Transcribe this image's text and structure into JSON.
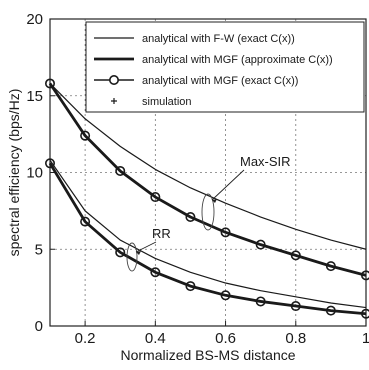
{
  "chart_data": {
    "type": "line",
    "xlabel": "Normalized BS-MS distance",
    "ylabel": "spectral efficiency (bps/Hz)",
    "xlim": [
      0.1,
      1
    ],
    "ylim": [
      0,
      20
    ],
    "xticks": [
      "0.2",
      "0.4",
      "0.6",
      "0.8",
      "1"
    ],
    "yticks": [
      "0",
      "5",
      "10",
      "15",
      "20"
    ],
    "grid": true,
    "legend_position": "top-right",
    "annotations": [
      "Max-SIR",
      "RR"
    ],
    "x": [
      0.1,
      0.2,
      0.3,
      0.4,
      0.5,
      0.6,
      0.7,
      0.8,
      0.9,
      1.0
    ],
    "series": [
      {
        "name": "analytical with F-W (exact C(x))",
        "group": "Max-SIR",
        "values": [
          15.8,
          13.5,
          11.7,
          10.2,
          9.0,
          8.0,
          7.1,
          6.3,
          5.6,
          5.0
        ]
      },
      {
        "name": "analytical with MGF (approximate C(x))",
        "group": "Max-SIR",
        "values": [
          15.8,
          12.4,
          10.1,
          8.4,
          7.1,
          6.1,
          5.3,
          4.6,
          3.9,
          3.3
        ]
      },
      {
        "name": "analytical with MGF (exact C(x))",
        "group": "Max-SIR",
        "values": [
          15.8,
          12.4,
          10.1,
          8.4,
          7.1,
          6.1,
          5.3,
          4.6,
          3.9,
          3.3
        ]
      },
      {
        "name": "analytical with F-W (exact C(x))",
        "group": "RR",
        "values": [
          10.8,
          7.5,
          5.6,
          4.4,
          3.5,
          2.8,
          2.3,
          1.9,
          1.5,
          1.2
        ]
      },
      {
        "name": "analytical with MGF (approximate C(x))",
        "group": "RR",
        "values": [
          10.6,
          6.8,
          4.8,
          3.5,
          2.6,
          2.0,
          1.6,
          1.3,
          1.0,
          0.8
        ]
      },
      {
        "name": "analytical with MGF (exact C(x))",
        "group": "RR",
        "values": [
          10.6,
          6.8,
          4.8,
          3.5,
          2.6,
          2.0,
          1.6,
          1.3,
          1.0,
          0.8
        ]
      }
    ],
    "legend": [
      {
        "label": "analytical with F-W (exact C(x))",
        "style": "thin-line"
      },
      {
        "label": "analytical with MGF (approximate C(x))",
        "style": "thick-line"
      },
      {
        "label": "analytical with MGF (exact C(x))",
        "style": "circle-marker"
      },
      {
        "label": "simulation",
        "style": "plus-marker"
      }
    ]
  }
}
